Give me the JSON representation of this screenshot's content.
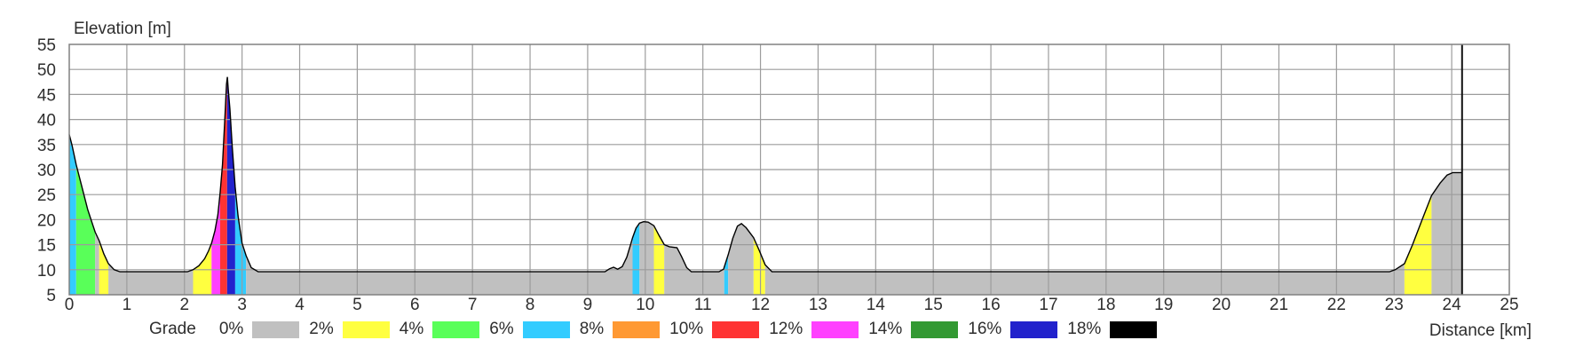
{
  "chart_data": {
    "type": "area",
    "title": "Elevation [m]",
    "xlabel": "Distance [km]",
    "ylabel": "Elevation [m]",
    "xlim": [
      0,
      25
    ],
    "ylim": [
      5,
      55
    ],
    "grid": true,
    "x_ticks": [
      0,
      1,
      2,
      3,
      4,
      5,
      6,
      7,
      8,
      9,
      10,
      11,
      12,
      13,
      14,
      15,
      16,
      17,
      18,
      19,
      20,
      21,
      22,
      23,
      24,
      25
    ],
    "y_ticks": [
      5,
      10,
      15,
      20,
      25,
      30,
      35,
      40,
      45,
      50,
      55
    ],
    "route_end_km": 24.18,
    "legend": {
      "grade_label": "Grade",
      "position": "bottom",
      "items": [
        {
          "label": "0%",
          "color": "#c0c0c0"
        },
        {
          "label": "2%",
          "color": "#ffff40"
        },
        {
          "label": "4%",
          "color": "#59ff59"
        },
        {
          "label": "6%",
          "color": "#33ccff"
        },
        {
          "label": "8%",
          "color": "#ff9933"
        },
        {
          "label": "10%",
          "color": "#ff3333"
        },
        {
          "label": "12%",
          "color": "#ff40ff"
        },
        {
          "label": "14%",
          "color": "#339933"
        },
        {
          "label": "16%",
          "color": "#2222cc"
        },
        {
          "label": "18%",
          "color": "#000000"
        }
      ]
    },
    "profile_points": [
      [
        0.0,
        37.0
      ],
      [
        0.05,
        34.8
      ],
      [
        0.12,
        31.0
      ],
      [
        0.22,
        26.5
      ],
      [
        0.32,
        22.0
      ],
      [
        0.45,
        17.5
      ],
      [
        0.52,
        15.8
      ],
      [
        0.6,
        13.2
      ],
      [
        0.68,
        11.2
      ],
      [
        0.78,
        10.0
      ],
      [
        0.88,
        9.6
      ],
      [
        2.05,
        9.6
      ],
      [
        2.15,
        10.0
      ],
      [
        2.25,
        10.8
      ],
      [
        2.35,
        12.2
      ],
      [
        2.42,
        13.8
      ],
      [
        2.47,
        15.3
      ],
      [
        2.53,
        17.8
      ],
      [
        2.58,
        21.0
      ],
      [
        2.62,
        25.5
      ],
      [
        2.66,
        31.0
      ],
      [
        2.7,
        40.0
      ],
      [
        2.73,
        47.0
      ],
      [
        2.745,
        48.5
      ],
      [
        2.76,
        46.0
      ],
      [
        2.79,
        42.0
      ],
      [
        2.83,
        34.5
      ],
      [
        2.88,
        26.5
      ],
      [
        2.93,
        20.8
      ],
      [
        3.0,
        15.3
      ],
      [
        3.07,
        12.8
      ],
      [
        3.16,
        10.4
      ],
      [
        3.28,
        9.6
      ],
      [
        9.3,
        9.6
      ],
      [
        9.38,
        10.2
      ],
      [
        9.45,
        10.5
      ],
      [
        9.52,
        10.1
      ],
      [
        9.6,
        10.6
      ],
      [
        9.68,
        12.5
      ],
      [
        9.74,
        14.8
      ],
      [
        9.78,
        16.4
      ],
      [
        9.84,
        18.3
      ],
      [
        9.9,
        19.3
      ],
      [
        9.97,
        19.6
      ],
      [
        10.05,
        19.5
      ],
      [
        10.15,
        18.8
      ],
      [
        10.24,
        16.8
      ],
      [
        10.33,
        15.0
      ],
      [
        10.42,
        14.6
      ],
      [
        10.55,
        14.4
      ],
      [
        10.63,
        12.6
      ],
      [
        10.72,
        10.4
      ],
      [
        10.8,
        9.6
      ],
      [
        11.28,
        9.6
      ],
      [
        11.36,
        10.1
      ],
      [
        11.44,
        13.0
      ],
      [
        11.52,
        16.3
      ],
      [
        11.6,
        18.7
      ],
      [
        11.67,
        19.2
      ],
      [
        11.75,
        18.4
      ],
      [
        11.88,
        16.4
      ],
      [
        11.98,
        13.8
      ],
      [
        12.08,
        11.0
      ],
      [
        12.2,
        9.6
      ],
      [
        22.92,
        9.6
      ],
      [
        23.02,
        10.0
      ],
      [
        23.18,
        11.2
      ],
      [
        23.32,
        15.0
      ],
      [
        23.48,
        19.8
      ],
      [
        23.65,
        24.8
      ],
      [
        23.8,
        27.3
      ],
      [
        23.92,
        28.9
      ],
      [
        24.02,
        29.4
      ],
      [
        24.18,
        29.4
      ]
    ],
    "grade_bands": [
      {
        "from": 0.0,
        "to": 0.12,
        "grade": "6%"
      },
      {
        "from": 0.12,
        "to": 0.45,
        "grade": "4%"
      },
      {
        "from": 0.45,
        "to": 0.52,
        "grade": "0%"
      },
      {
        "from": 0.52,
        "to": 0.68,
        "grade": "2%"
      },
      {
        "from": 0.68,
        "to": 2.15,
        "grade": "0%"
      },
      {
        "from": 2.15,
        "to": 2.47,
        "grade": "2%"
      },
      {
        "from": 2.47,
        "to": 2.62,
        "grade": "12%"
      },
      {
        "from": 2.62,
        "to": 2.74,
        "grade": "10%"
      },
      {
        "from": 2.74,
        "to": 2.88,
        "grade": "16%"
      },
      {
        "from": 2.88,
        "to": 3.07,
        "grade": "6%"
      },
      {
        "from": 3.07,
        "to": 9.78,
        "grade": "0%"
      },
      {
        "from": 9.78,
        "to": 9.9,
        "grade": "6%"
      },
      {
        "from": 9.9,
        "to": 10.15,
        "grade": "0%"
      },
      {
        "from": 10.15,
        "to": 10.33,
        "grade": "2%"
      },
      {
        "from": 10.33,
        "to": 11.37,
        "grade": "0%"
      },
      {
        "from": 11.37,
        "to": 11.44,
        "grade": "6%"
      },
      {
        "from": 11.44,
        "to": 11.88,
        "grade": "0%"
      },
      {
        "from": 11.88,
        "to": 12.08,
        "grade": "2%"
      },
      {
        "from": 12.08,
        "to": 23.18,
        "grade": "0%"
      },
      {
        "from": 23.18,
        "to": 23.65,
        "grade": "2%"
      },
      {
        "from": 23.65,
        "to": 24.18,
        "grade": "0%"
      }
    ],
    "style_colors": {
      "grid": "#9c9c9c",
      "plot_border": "#808080",
      "curve_outline": "#000000",
      "route_end_marker": "#111111",
      "text": "#2e2e2e",
      "background": "#ffffff"
    }
  }
}
